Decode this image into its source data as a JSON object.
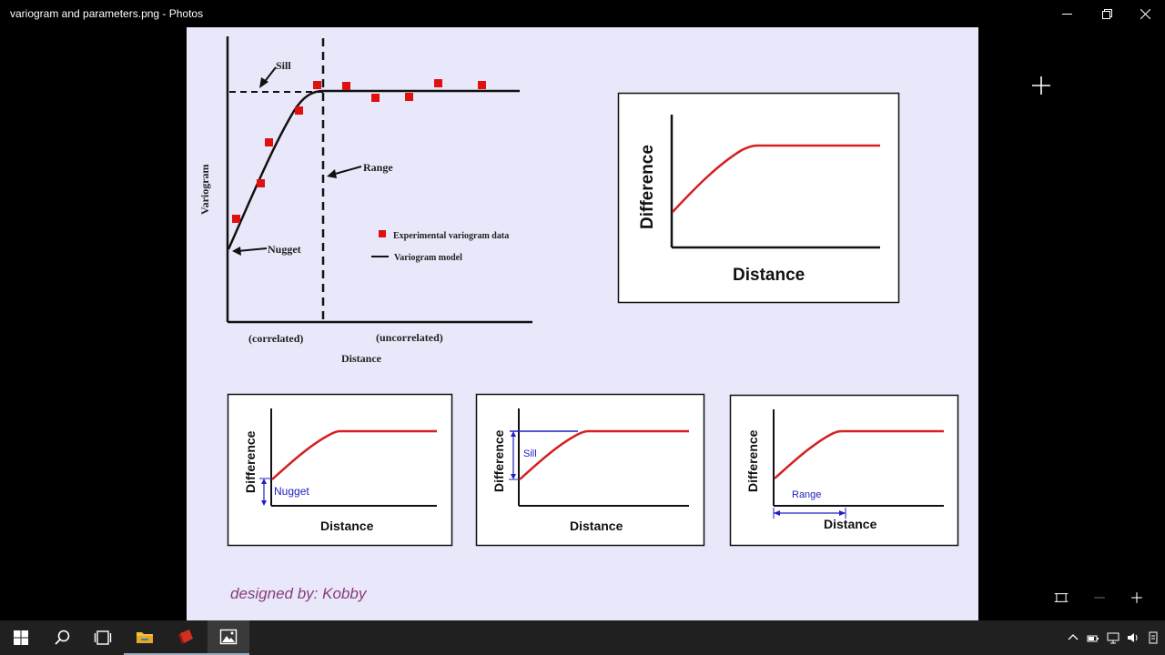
{
  "window": {
    "title": "variogram and parameters.png - Photos"
  },
  "figure": {
    "main": {
      "sill_label": "Sill",
      "range_label": "Range",
      "nugget_label": "Nugget",
      "ylabel": "Variogram",
      "xlabel": "Distance",
      "correlated_label": "(correlated)",
      "uncorrelated_label": "(uncorrelated)",
      "legend_points": "Experimental variogram data",
      "legend_line": "Variogram model"
    },
    "top_right_panel": {
      "ylabel": "Difference",
      "xlabel": "Distance"
    },
    "nugget_panel": {
      "ylabel": "Difference",
      "xlabel": "Distance",
      "annotation": "Nugget"
    },
    "sill_panel": {
      "ylabel": "Difference",
      "xlabel": "Distance",
      "annotation": "Sill"
    },
    "range_panel": {
      "ylabel": "Difference",
      "xlabel": "Distance",
      "annotation": "Range"
    },
    "credit": "designed by: Kobby"
  },
  "colors": {
    "photo_background": "#e8e8fa",
    "model_curve": "#d42020",
    "data_points": "#e01010",
    "annotation_blue": "#2020c0",
    "credit_text": "#8a3a7a",
    "taskbar": "#202020"
  },
  "icons": {
    "minimize": "minimize-icon",
    "restore": "restore-icon",
    "close": "close-icon",
    "zoom_add": "plus-icon",
    "fit": "fit-to-window-icon",
    "zoom_out": "zoom-out-icon",
    "zoom_in": "zoom-in-icon"
  }
}
